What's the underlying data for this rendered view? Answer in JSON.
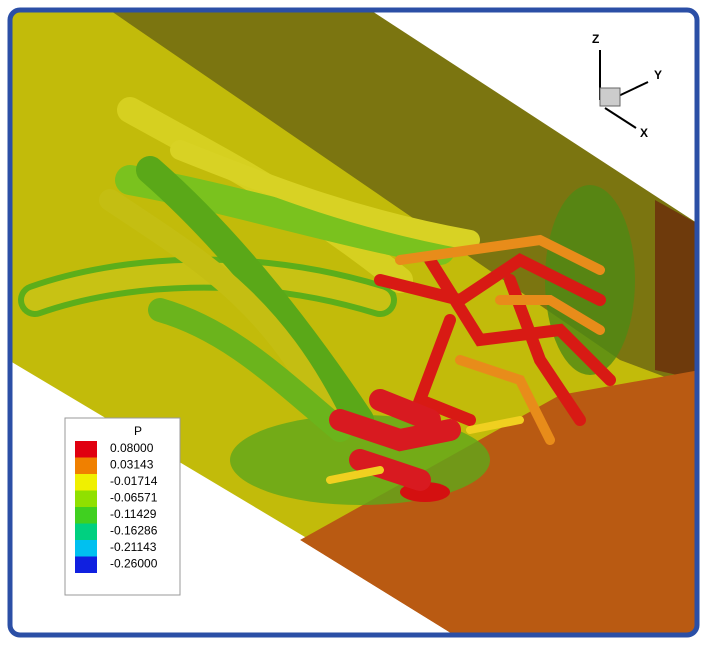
{
  "legend": {
    "title": "P",
    "entries": [
      {
        "label": "0.08000",
        "color": "#e00010"
      },
      {
        "label": "0.03143",
        "color": "#f08000"
      },
      {
        "label": "-0.01714",
        "color": "#f0f000"
      },
      {
        "label": "-0.06571",
        "color": "#90e000"
      },
      {
        "label": "-0.11429",
        "color": "#40d020"
      },
      {
        "label": "-0.16286",
        "color": "#00d080"
      },
      {
        "label": "-0.21143",
        "color": "#00c0f0"
      },
      {
        "label": "-0.26000",
        "color": "#1020e0"
      }
    ]
  },
  "axes": {
    "z": "Z",
    "y": "Y",
    "x": "X"
  }
}
